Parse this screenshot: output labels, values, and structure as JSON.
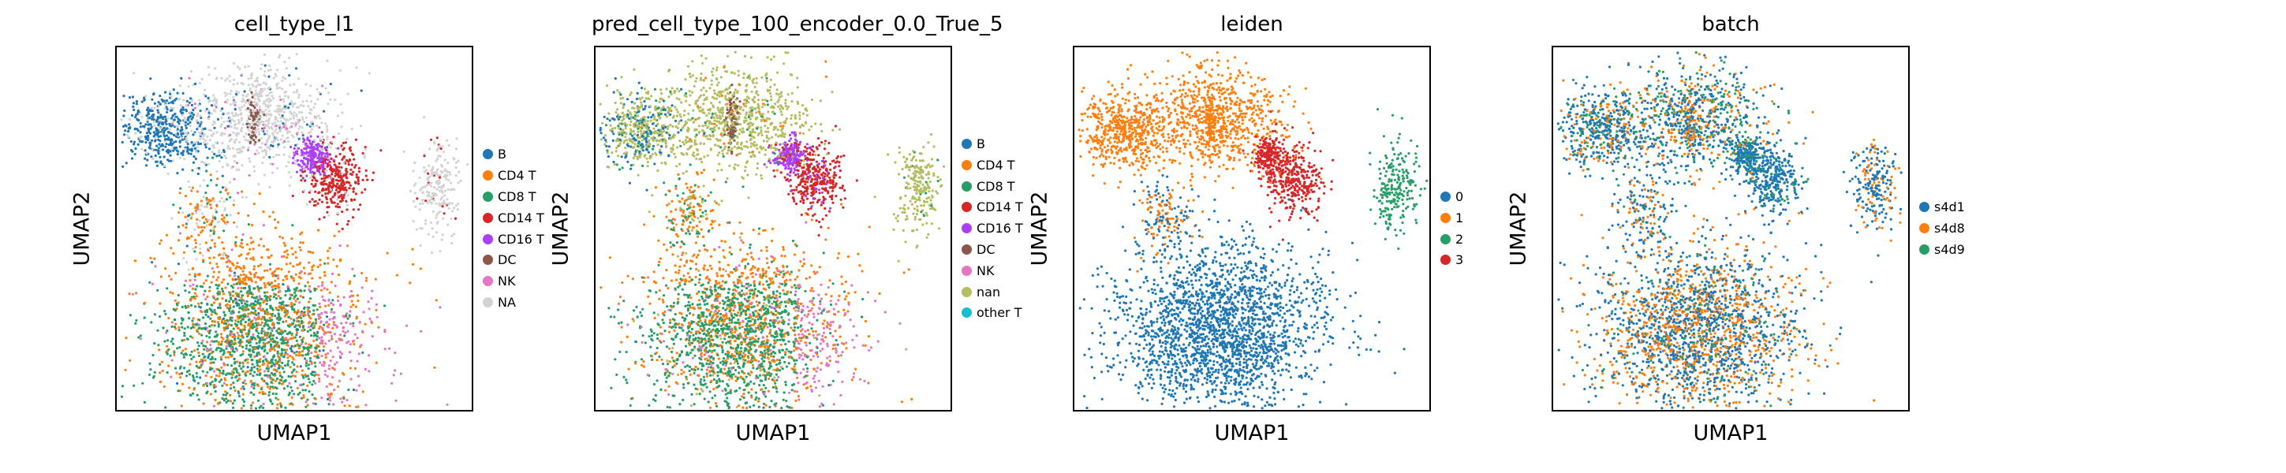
{
  "chart_data": [
    {
      "type": "scatter",
      "title": "cell_type_l1",
      "xlabel": "UMAP1",
      "ylabel": "UMAP2",
      "legend_position": "right",
      "categories": [
        "B",
        "CD4 T",
        "CD8 T",
        "CD14 T",
        "CD16 T",
        "DC",
        "NK",
        "NA"
      ],
      "colors": [
        "#1f77b4",
        "#ff7f0e",
        "#279e68",
        "#d62728",
        "#aa40fc",
        "#8c564b",
        "#e377c2",
        "#d3d3d3"
      ]
    },
    {
      "type": "scatter",
      "title": "pred_cell_type_100_encoder_0.0_True_5",
      "xlabel": "UMAP1",
      "ylabel": "UMAP2",
      "legend_position": "right",
      "categories": [
        "B",
        "CD4 T",
        "CD8 T",
        "CD14 T",
        "CD16 T",
        "DC",
        "NK",
        "nan",
        "other T"
      ],
      "colors": [
        "#1f77b4",
        "#ff7f0e",
        "#279e68",
        "#d62728",
        "#aa40fc",
        "#8c564b",
        "#e377c2",
        "#b5bd61",
        "#17becf"
      ]
    },
    {
      "type": "scatter",
      "title": "leiden",
      "xlabel": "UMAP1",
      "ylabel": "UMAP2",
      "legend_position": "right",
      "categories": [
        "0",
        "1",
        "2",
        "3"
      ],
      "colors": [
        "#1f77b4",
        "#ff7f0e",
        "#279e68",
        "#d62728"
      ]
    },
    {
      "type": "scatter",
      "title": "batch",
      "xlabel": "UMAP1",
      "ylabel": "UMAP2",
      "legend_position": "right",
      "categories": [
        "s4d1",
        "s4d8",
        "s4d9"
      ],
      "colors": [
        "#1f77b4",
        "#ff7f0e",
        "#279e68"
      ]
    }
  ]
}
